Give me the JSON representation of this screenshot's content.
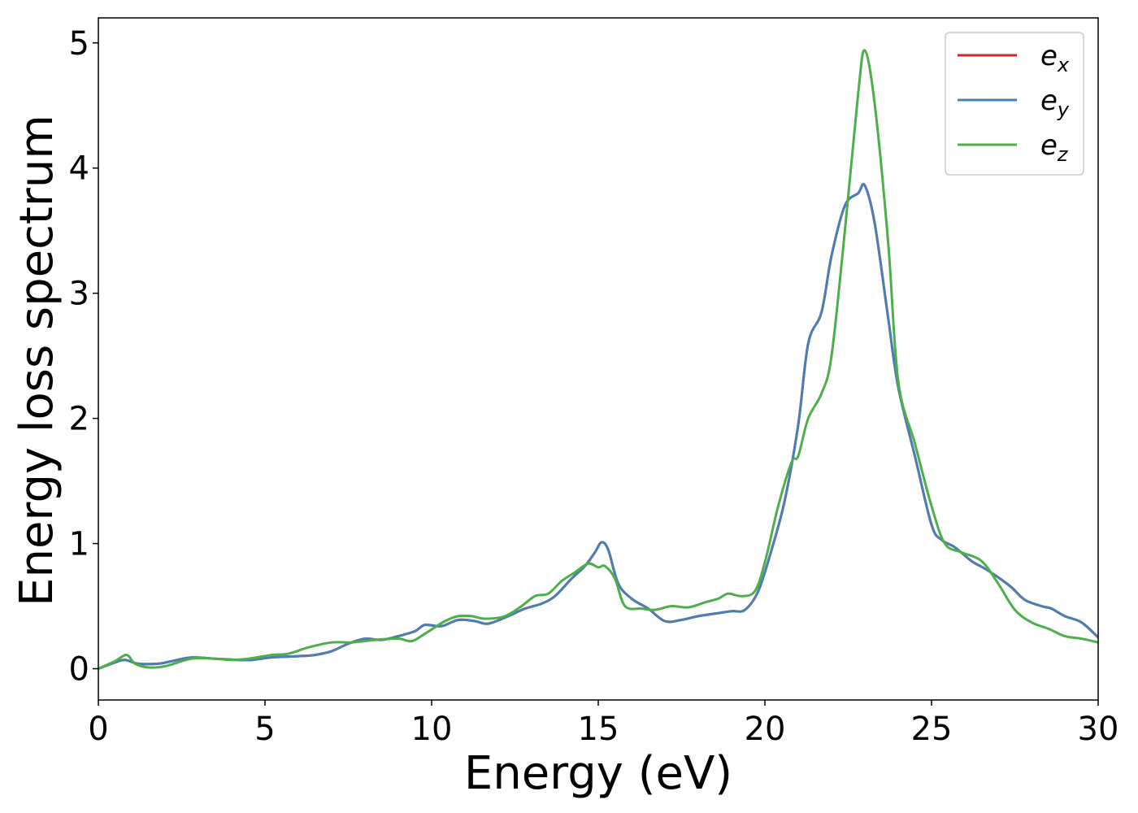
{
  "chart_data": {
    "type": "line",
    "title": "",
    "xlabel": "Energy (eV)",
    "ylabel": "Energy loss spectrum",
    "xlim": [
      0,
      30
    ],
    "ylim": [
      -0.25,
      5.2
    ],
    "xticks": [
      0,
      5,
      10,
      15,
      20,
      25,
      30
    ],
    "yticks": [
      0,
      1,
      2,
      3,
      4,
      5
    ],
    "grid": false,
    "legend_position": "top-right",
    "series": [
      {
        "name": "e",
        "subscript": "x",
        "color": "#d62728",
        "x": [
          0,
          0.5,
          0.8,
          1.2,
          1.8,
          2.2,
          2.8,
          3.5,
          4.2,
          4.6,
          5.2,
          6.0,
          6.5,
          7.0,
          7.5,
          8.0,
          8.5,
          9.0,
          9.5,
          9.8,
          10.3,
          10.8,
          11.3,
          11.7,
          12.3,
          12.8,
          13.3,
          13.7,
          14.2,
          14.6,
          14.9,
          15.1,
          15.3,
          15.6,
          16.0,
          16.5,
          17.0,
          17.5,
          18.0,
          18.5,
          19.0,
          19.4,
          19.8,
          20.2,
          20.6,
          21.0,
          21.3,
          21.7,
          22.0,
          22.4,
          22.8,
          23.0,
          23.3,
          23.7,
          24.0,
          24.5,
          25.0,
          25.3,
          25.7,
          26.2,
          26.6,
          27.0,
          27.4,
          27.8,
          28.3,
          28.6,
          29.0,
          29.5,
          30.0
        ],
        "values": [
          0.0,
          0.05,
          0.07,
          0.04,
          0.04,
          0.06,
          0.09,
          0.08,
          0.07,
          0.07,
          0.09,
          0.1,
          0.11,
          0.14,
          0.2,
          0.24,
          0.23,
          0.26,
          0.3,
          0.35,
          0.34,
          0.39,
          0.38,
          0.36,
          0.42,
          0.48,
          0.52,
          0.58,
          0.72,
          0.82,
          0.93,
          1.01,
          0.95,
          0.68,
          0.56,
          0.48,
          0.38,
          0.39,
          0.42,
          0.44,
          0.46,
          0.47,
          0.62,
          0.95,
          1.35,
          1.95,
          2.6,
          2.85,
          3.3,
          3.7,
          3.8,
          3.86,
          3.55,
          2.8,
          2.25,
          1.7,
          1.15,
          1.03,
          0.97,
          0.86,
          0.8,
          0.73,
          0.65,
          0.55,
          0.5,
          0.48,
          0.42,
          0.37,
          0.25
        ]
      },
      {
        "name": "e",
        "subscript": "y",
        "color": "#4a7fb5",
        "x": [
          0,
          0.5,
          0.8,
          1.2,
          1.8,
          2.2,
          2.8,
          3.5,
          4.2,
          4.6,
          5.2,
          6.0,
          6.5,
          7.0,
          7.5,
          8.0,
          8.5,
          9.0,
          9.5,
          9.8,
          10.3,
          10.8,
          11.3,
          11.7,
          12.3,
          12.8,
          13.3,
          13.7,
          14.2,
          14.6,
          14.9,
          15.1,
          15.3,
          15.6,
          16.0,
          16.5,
          17.0,
          17.5,
          18.0,
          18.5,
          19.0,
          19.4,
          19.8,
          20.2,
          20.6,
          21.0,
          21.3,
          21.7,
          22.0,
          22.4,
          22.8,
          23.0,
          23.3,
          23.7,
          24.0,
          24.5,
          25.0,
          25.3,
          25.7,
          26.2,
          26.6,
          27.0,
          27.4,
          27.8,
          28.3,
          28.6,
          29.0,
          29.5,
          30.0
        ],
        "values": [
          0.0,
          0.05,
          0.07,
          0.04,
          0.04,
          0.06,
          0.09,
          0.08,
          0.07,
          0.07,
          0.09,
          0.1,
          0.11,
          0.14,
          0.2,
          0.24,
          0.23,
          0.26,
          0.3,
          0.35,
          0.34,
          0.39,
          0.38,
          0.36,
          0.42,
          0.48,
          0.52,
          0.58,
          0.72,
          0.82,
          0.93,
          1.01,
          0.95,
          0.68,
          0.56,
          0.48,
          0.38,
          0.39,
          0.42,
          0.44,
          0.46,
          0.47,
          0.62,
          0.95,
          1.35,
          1.95,
          2.6,
          2.85,
          3.3,
          3.7,
          3.8,
          3.86,
          3.55,
          2.8,
          2.25,
          1.7,
          1.15,
          1.03,
          0.97,
          0.86,
          0.8,
          0.73,
          0.65,
          0.55,
          0.5,
          0.48,
          0.42,
          0.37,
          0.25
        ]
      },
      {
        "name": "e",
        "subscript": "z",
        "color": "#4daf4a",
        "x": [
          0,
          0.5,
          0.85,
          1.1,
          1.5,
          2.0,
          2.8,
          3.5,
          4.0,
          4.5,
          5.2,
          5.7,
          6.3,
          7.0,
          7.6,
          8.3,
          9.0,
          9.4,
          9.8,
          10.4,
          10.8,
          11.2,
          11.6,
          12.2,
          12.7,
          13.1,
          13.5,
          13.9,
          14.3,
          14.7,
          15.0,
          15.2,
          15.5,
          15.8,
          16.3,
          16.7,
          17.2,
          17.7,
          18.2,
          18.6,
          18.9,
          19.3,
          19.7,
          20.0,
          20.4,
          20.8,
          21.0,
          21.3,
          21.7,
          22.0,
          22.4,
          22.8,
          23.0,
          23.3,
          23.7,
          24.0,
          24.5,
          25.0,
          25.4,
          25.9,
          26.5,
          27.0,
          27.5,
          28.0,
          28.5,
          29.0,
          29.5,
          30.0
        ],
        "values": [
          0.0,
          0.06,
          0.11,
          0.04,
          0.01,
          0.02,
          0.08,
          0.08,
          0.07,
          0.08,
          0.11,
          0.12,
          0.17,
          0.21,
          0.21,
          0.23,
          0.24,
          0.22,
          0.28,
          0.38,
          0.42,
          0.42,
          0.4,
          0.42,
          0.5,
          0.58,
          0.6,
          0.7,
          0.77,
          0.84,
          0.81,
          0.82,
          0.72,
          0.5,
          0.48,
          0.47,
          0.5,
          0.49,
          0.53,
          0.56,
          0.6,
          0.58,
          0.62,
          0.85,
          1.3,
          1.65,
          1.7,
          2.0,
          2.2,
          2.5,
          3.5,
          4.6,
          4.94,
          4.5,
          3.4,
          2.3,
          1.8,
          1.3,
          1.0,
          0.93,
          0.86,
          0.68,
          0.47,
          0.37,
          0.32,
          0.26,
          0.24,
          0.21
        ]
      }
    ]
  }
}
